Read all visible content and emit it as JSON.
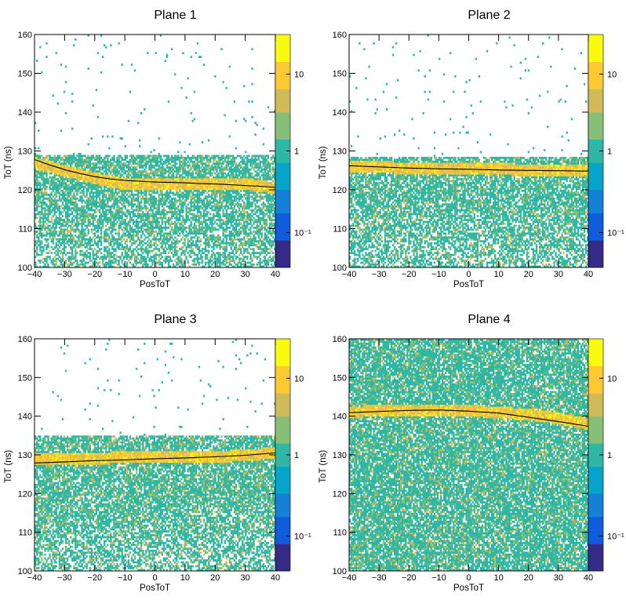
{
  "colors": {
    "palette": [
      "#352a87",
      "#0f5cdd",
      "#1481d6",
      "#06a4ca",
      "#2eb7a4",
      "#87bf77",
      "#d1bb59",
      "#fec832",
      "#f9fb0e"
    ],
    "fit_line": "#000000",
    "frame": "#000000"
  },
  "chart_data": [
    {
      "type": "heatmap",
      "title": "Plane 1",
      "xlabel": "PosToT",
      "ylabel": "ToT (ns)",
      "xlim": [
        -40,
        40
      ],
      "ylim": [
        100,
        160
      ],
      "x_ticks": [
        "−40",
        "−30",
        "−20",
        "−10",
        "0",
        "10",
        "20",
        "30",
        "40"
      ],
      "y_ticks": [
        "100",
        "110",
        "120",
        "130",
        "140",
        "150",
        "160"
      ],
      "z_scale": "log",
      "z_ticks": [
        "10",
        "1",
        "10⁻¹"
      ],
      "band": {
        "upper_edge": 129,
        "core_center": [
          127,
          125,
          123,
          121.5,
          121.5,
          121.5,
          121.5,
          121.5,
          120.5
        ],
        "core_halfwidth": 1.5
      },
      "fit_x": [
        -40,
        -35,
        -30,
        -25,
        -20,
        -15,
        -10,
        -5,
        0,
        5,
        10,
        15,
        20,
        25,
        30,
        35,
        40
      ],
      "fit_y": [
        127.8,
        126.4,
        125.2,
        124.2,
        123.4,
        122.8,
        122.4,
        122.2,
        122.0,
        121.9,
        121.8,
        121.6,
        121.5,
        121.3,
        121.1,
        120.9,
        120.6
      ]
    },
    {
      "type": "heatmap",
      "title": "Plane 2",
      "xlabel": "PosToT",
      "ylabel": "ToT (ns)",
      "xlim": [
        -40,
        40
      ],
      "ylim": [
        100,
        160
      ],
      "x_ticks": [
        "−40",
        "−30",
        "−20",
        "−10",
        "0",
        "10",
        "20",
        "30",
        "40"
      ],
      "y_ticks": [
        "100",
        "110",
        "120",
        "130",
        "140",
        "150",
        "160"
      ],
      "z_scale": "log",
      "z_ticks": [
        "10",
        "1",
        "10⁻¹"
      ],
      "band": {
        "upper_edge": 128.5,
        "core_center": [
          126,
          126,
          125.5,
          125.5,
          125.5,
          125.5,
          125,
          125,
          125
        ],
        "core_halfwidth": 1.5
      },
      "fit_x": [
        -40,
        -30,
        -20,
        -10,
        0,
        10,
        20,
        30,
        40
      ],
      "fit_y": [
        126.2,
        125.9,
        125.6,
        125.4,
        125.3,
        125.1,
        125.0,
        124.9,
        124.8
      ]
    },
    {
      "type": "heatmap",
      "title": "Plane 3",
      "xlabel": "PosToT",
      "ylabel": "ToT (ns)",
      "xlim": [
        -40,
        40
      ],
      "ylim": [
        100,
        160
      ],
      "x_ticks": [
        "−40",
        "−30",
        "−20",
        "−10",
        "0",
        "10",
        "20",
        "30",
        "40"
      ],
      "y_ticks": [
        "100",
        "110",
        "120",
        "130",
        "140",
        "150",
        "160"
      ],
      "z_scale": "log",
      "z_ticks": [
        "10",
        "1",
        "10⁻¹"
      ],
      "band": {
        "upper_edge": 135,
        "core_center": [
          129,
          129,
          129,
          129.5,
          129.5,
          129.5,
          129.5,
          130,
          130.5
        ],
        "core_halfwidth": 1.5
      },
      "fit_x": [
        -40,
        -30,
        -20,
        -10,
        0,
        10,
        20,
        30,
        40
      ],
      "fit_y": [
        127.9,
        128.2,
        128.5,
        128.7,
        129.0,
        129.2,
        129.5,
        129.9,
        130.5
      ]
    },
    {
      "type": "heatmap",
      "title": "Plane 4",
      "xlabel": "PosToT",
      "ylabel": "ToT (ns)",
      "xlim": [
        -40,
        40
      ],
      "ylim": [
        100,
        160
      ],
      "x_ticks": [
        "−40",
        "−30",
        "−20",
        "−10",
        "0",
        "10",
        "20",
        "30",
        "40"
      ],
      "y_ticks": [
        "100",
        "110",
        "120",
        "130",
        "140",
        "150",
        "160"
      ],
      "z_scale": "log",
      "z_ticks": [
        "10",
        "1",
        "10⁻¹"
      ],
      "band": {
        "upper_edge": 160,
        "core_center": [
          141,
          141.5,
          141.5,
          141.5,
          141.5,
          141,
          140.5,
          139.5,
          138
        ],
        "core_halfwidth": 1.5
      },
      "fit_x": [
        -40,
        -30,
        -20,
        -10,
        0,
        10,
        20,
        30,
        40
      ],
      "fit_y": [
        140.9,
        141.2,
        141.5,
        141.6,
        141.3,
        140.8,
        139.7,
        138.6,
        137.4
      ]
    }
  ]
}
